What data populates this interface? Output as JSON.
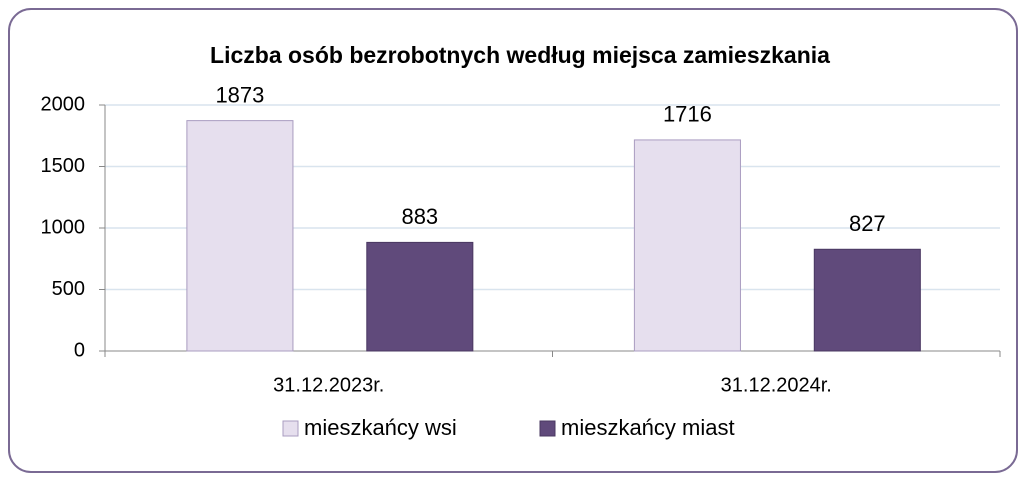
{
  "chart_data": {
    "type": "bar",
    "title": "Liczba osób bezrobotnych według miejsca zamieszkania",
    "categories": [
      "31.12.2023r.",
      "31.12.2024r."
    ],
    "series": [
      {
        "name": "mieszkańcy wsi",
        "color": "#e6dfee",
        "values": [
          1873,
          1716
        ]
      },
      {
        "name": "mieszkańcy miast",
        "color": "#604a7b",
        "values": [
          883,
          827
        ]
      }
    ],
    "ylim": [
      0,
      2000
    ],
    "yticks": [
      0,
      500,
      1000,
      1500,
      2000
    ],
    "grid": true,
    "legend": "bottom"
  }
}
